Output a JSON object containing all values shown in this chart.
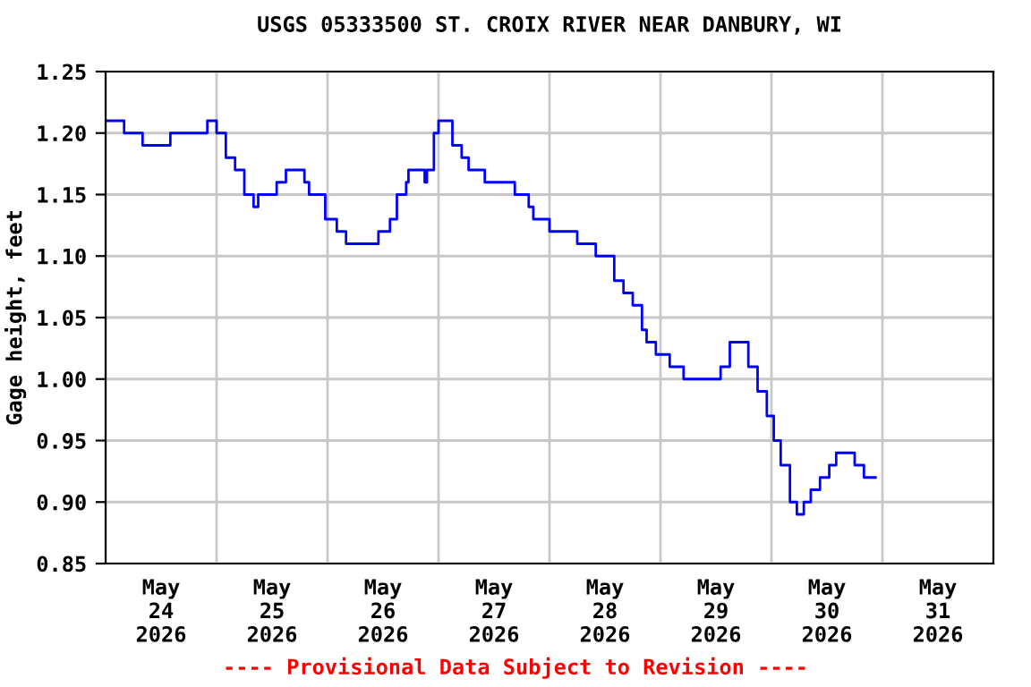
{
  "chart_data": {
    "type": "step",
    "title": "USGS 05333500 ST. CROIX RIVER NEAR DANBURY, WI",
    "ylabel": "Gage height, feet",
    "annotations": [
      "---- Provisional Data Subject to Revision ----"
    ],
    "xlim": [
      "2026-05-24T00:00",
      "2026-06-01T00:00"
    ],
    "xticks": [
      {
        "value": "2026-05-24T00:00",
        "label": null
      },
      {
        "value": "2026-05-25T00:00",
        "label": null
      },
      {
        "value": "2026-05-26T00:00",
        "label": null
      },
      {
        "value": "2026-05-27T00:00",
        "label": null
      },
      {
        "value": "2026-05-28T00:00",
        "label": null
      },
      {
        "value": "2026-05-29T00:00",
        "label": null
      },
      {
        "value": "2026-05-30T00:00",
        "label": null
      },
      {
        "value": "2026-05-31T00:00",
        "label": null
      },
      {
        "value": "2026-06-01T00:00",
        "label": null
      },
      {
        "value": "2026-05-24T12:00",
        "label": "May\n24\n2026"
      },
      {
        "value": "2026-05-25T12:00",
        "label": "May\n25\n2026"
      },
      {
        "value": "2026-05-26T12:00",
        "label": "May\n26\n2026"
      },
      {
        "value": "2026-05-27T12:00",
        "label": "May\n27\n2026"
      },
      {
        "value": "2026-05-28T12:00",
        "label": "May\n28\n2026"
      },
      {
        "value": "2026-05-29T12:00",
        "label": "May\n29\n2026"
      },
      {
        "value": "2026-05-30T12:00",
        "label": "May\n30\n2026"
      },
      {
        "value": "2026-05-31T12:00",
        "label": "May\n31\n2026"
      }
    ],
    "ylim": [
      0.85,
      1.25
    ],
    "yticks": [
      {
        "value": 0.85,
        "label": "0.85"
      },
      {
        "value": 0.9,
        "label": "0.90"
      },
      {
        "value": 0.95,
        "label": "0.95"
      },
      {
        "value": 1.0,
        "label": "1.00"
      },
      {
        "value": 1.05,
        "label": "1.05"
      },
      {
        "value": 1.1,
        "label": "1.10"
      },
      {
        "value": 1.15,
        "label": "1.15"
      },
      {
        "value": 1.2,
        "label": "1.20"
      },
      {
        "value": 1.25,
        "label": "1.25"
      }
    ],
    "grid": true,
    "series": [
      {
        "color": "#0000ff",
        "x": [
          "2026-05-24T00:00",
          "2026-05-24T04:00",
          "2026-05-24T08:00",
          "2026-05-24T13:00",
          "2026-05-24T14:00",
          "2026-05-24T22:00",
          "2026-05-25T00:00",
          "2026-05-25T02:00",
          "2026-05-25T04:00",
          "2026-05-25T06:00",
          "2026-05-25T08:00",
          "2026-05-25T09:00",
          "2026-05-25T13:00",
          "2026-05-25T15:00",
          "2026-05-25T19:00",
          "2026-05-25T20:00",
          "2026-05-25T23:30",
          "2026-05-26T02:00",
          "2026-05-26T04:00",
          "2026-05-26T09:00",
          "2026-05-26T11:00",
          "2026-05-26T13:30",
          "2026-05-26T15:00",
          "2026-05-26T17:00",
          "2026-05-26T17:30",
          "2026-05-26T21:00",
          "2026-05-26T21:30",
          "2026-05-26T23:00",
          "2026-05-27T00:00",
          "2026-05-27T02:00",
          "2026-05-27T03:00",
          "2026-05-27T05:00",
          "2026-05-27T06:30",
          "2026-05-27T09:00",
          "2026-05-27T10:00",
          "2026-05-27T12:30",
          "2026-05-27T16:30",
          "2026-05-27T19:30",
          "2026-05-27T20:30",
          "2026-05-28T00:00",
          "2026-05-28T06:00",
          "2026-05-28T10:00",
          "2026-05-28T13:00",
          "2026-05-28T14:00",
          "2026-05-28T16:00",
          "2026-05-28T18:00",
          "2026-05-28T20:00",
          "2026-05-28T21:00",
          "2026-05-28T23:00",
          "2026-05-29T02:00",
          "2026-05-29T05:00",
          "2026-05-29T09:00",
          "2026-05-29T13:00",
          "2026-05-29T15:00",
          "2026-05-29T18:00",
          "2026-05-29T19:00",
          "2026-05-29T21:00",
          "2026-05-29T23:00",
          "2026-05-30T00:30",
          "2026-05-30T02:00",
          "2026-05-30T04:00",
          "2026-05-30T05:30",
          "2026-05-30T07:00",
          "2026-05-30T08:30",
          "2026-05-30T10:30",
          "2026-05-30T12:30",
          "2026-05-30T14:00",
          "2026-05-30T17:00",
          "2026-05-30T18:00",
          "2026-05-30T20:00",
          "2026-05-30T22:30"
        ],
        "values": [
          1.21,
          1.2,
          1.19,
          1.19,
          1.2,
          1.21,
          1.2,
          1.18,
          1.17,
          1.15,
          1.14,
          1.15,
          1.16,
          1.17,
          1.16,
          1.15,
          1.13,
          1.12,
          1.11,
          1.11,
          1.12,
          1.13,
          1.15,
          1.16,
          1.17,
          1.16,
          1.17,
          1.2,
          1.21,
          1.21,
          1.19,
          1.18,
          1.17,
          1.17,
          1.16,
          1.16,
          1.15,
          1.14,
          1.13,
          1.12,
          1.11,
          1.1,
          1.1,
          1.08,
          1.07,
          1.06,
          1.04,
          1.03,
          1.02,
          1.01,
          1.0,
          1.0,
          1.01,
          1.03,
          1.03,
          1.01,
          0.99,
          0.97,
          0.95,
          0.93,
          0.9,
          0.89,
          0.9,
          0.91,
          0.92,
          0.93,
          0.94,
          0.94,
          0.93,
          0.92,
          0.92
        ]
      }
    ]
  }
}
